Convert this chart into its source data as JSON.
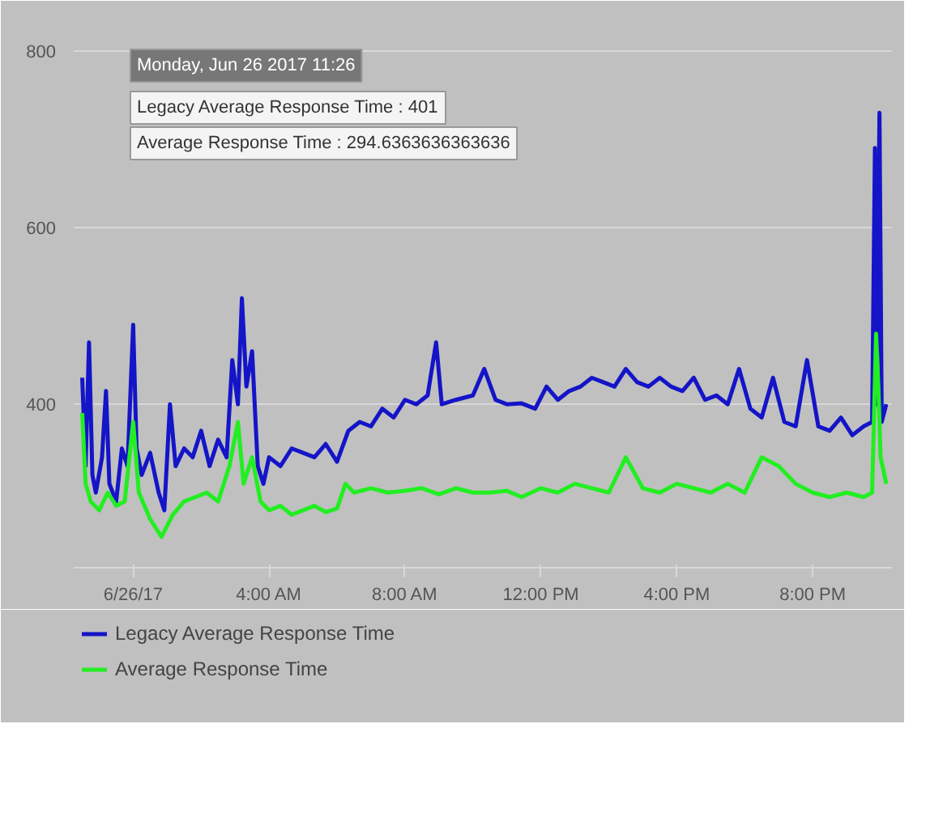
{
  "chart_data": {
    "type": "line",
    "x": [
      "2017-06-25T22:30",
      "2017-06-25T22:36",
      "2017-06-25T22:42",
      "2017-06-25T22:48",
      "2017-06-25T22:54",
      "2017-06-25T23:05",
      "2017-06-25T23:12",
      "2017-06-25T23:18",
      "2017-06-25T23:30",
      "2017-06-25T23:40",
      "2017-06-25T23:50",
      "2017-06-26T00:00",
      "2017-06-26T00:06",
      "2017-06-26T00:15",
      "2017-06-26T00:30",
      "2017-06-26T00:45",
      "2017-06-26T00:55",
      "2017-06-26T01:05",
      "2017-06-26T01:15",
      "2017-06-26T01:30",
      "2017-06-26T01:45",
      "2017-06-26T02:00",
      "2017-06-26T02:15",
      "2017-06-26T02:30",
      "2017-06-26T02:45",
      "2017-06-26T02:55",
      "2017-06-26T03:05",
      "2017-06-26T03:12",
      "2017-06-26T03:20",
      "2017-06-26T03:30",
      "2017-06-26T03:40",
      "2017-06-26T03:50",
      "2017-06-26T04:00",
      "2017-06-26T04:20",
      "2017-06-26T04:40",
      "2017-06-26T05:00",
      "2017-06-26T05:20",
      "2017-06-26T05:40",
      "2017-06-26T06:00",
      "2017-06-26T06:20",
      "2017-06-26T06:40",
      "2017-06-26T07:00",
      "2017-06-26T07:20",
      "2017-06-26T07:40",
      "2017-06-26T08:00",
      "2017-06-26T08:20",
      "2017-06-26T08:40",
      "2017-06-26T08:55",
      "2017-06-26T09:05",
      "2017-06-26T09:30",
      "2017-06-26T10:00",
      "2017-06-26T10:20",
      "2017-06-26T10:40",
      "2017-06-26T11:00",
      "2017-06-26T11:26",
      "2017-06-26T11:50",
      "2017-06-26T12:10",
      "2017-06-26T12:30",
      "2017-06-26T12:50",
      "2017-06-26T13:10",
      "2017-06-26T13:30",
      "2017-06-26T13:50",
      "2017-06-26T14:10",
      "2017-06-26T14:30",
      "2017-06-26T14:50",
      "2017-06-26T15:10",
      "2017-06-26T15:30",
      "2017-06-26T15:50",
      "2017-06-26T16:10",
      "2017-06-26T16:30",
      "2017-06-26T16:50",
      "2017-06-26T17:10",
      "2017-06-26T17:30",
      "2017-06-26T17:50",
      "2017-06-26T18:10",
      "2017-06-26T18:30",
      "2017-06-26T18:50",
      "2017-06-26T19:10",
      "2017-06-26T19:30",
      "2017-06-26T19:50",
      "2017-06-26T20:10",
      "2017-06-26T20:30",
      "2017-06-26T20:50",
      "2017-06-26T21:10",
      "2017-06-26T21:30",
      "2017-06-26T21:45",
      "2017-06-26T21:50",
      "2017-06-26T21:53",
      "2017-06-26T21:58",
      "2017-06-26T22:02",
      "2017-06-26T22:10"
    ],
    "series": [
      {
        "name": "Legacy Average Response Time",
        "color": "#1414c8",
        "values": [
          430,
          330,
          470,
          320,
          300,
          340,
          415,
          310,
          290,
          350,
          330,
          490,
          350,
          320,
          345,
          300,
          280,
          400,
          330,
          350,
          340,
          370,
          330,
          360,
          340,
          450,
          400,
          520,
          420,
          460,
          330,
          310,
          340,
          330,
          350,
          345,
          340,
          355,
          335,
          370,
          380,
          375,
          395,
          385,
          405,
          400,
          410,
          470,
          400,
          405,
          410,
          440,
          405,
          400,
          401,
          395,
          420,
          405,
          415,
          420,
          430,
          425,
          420,
          440,
          425,
          420,
          430,
          420,
          415,
          430,
          405,
          410,
          400,
          440,
          395,
          385,
          430,
          380,
          375,
          450,
          375,
          370,
          385,
          365,
          375,
          380,
          690,
          400,
          730,
          380,
          400
        ]
      },
      {
        "name": "Average Response Time",
        "color": "#22ee22",
        "x": [
          "2017-06-25T22:30",
          "2017-06-25T22:36",
          "2017-06-25T22:45",
          "2017-06-25T23:00",
          "2017-06-25T23:15",
          "2017-06-25T23:30",
          "2017-06-25T23:45",
          "2017-06-26T00:00",
          "2017-06-26T00:10",
          "2017-06-26T00:30",
          "2017-06-26T00:50",
          "2017-06-26T01:10",
          "2017-06-26T01:30",
          "2017-06-26T01:50",
          "2017-06-26T02:10",
          "2017-06-26T02:30",
          "2017-06-26T02:50",
          "2017-06-26T03:05",
          "2017-06-26T03:15",
          "2017-06-26T03:30",
          "2017-06-26T03:45",
          "2017-06-26T04:00",
          "2017-06-26T04:20",
          "2017-06-26T04:40",
          "2017-06-26T05:00",
          "2017-06-26T05:20",
          "2017-06-26T05:40",
          "2017-06-26T06:00",
          "2017-06-26T06:15",
          "2017-06-26T06:30",
          "2017-06-26T07:00",
          "2017-06-26T07:30",
          "2017-06-26T08:00",
          "2017-06-26T08:30",
          "2017-06-26T09:00",
          "2017-06-26T09:30",
          "2017-06-26T10:00",
          "2017-06-26T10:30",
          "2017-06-26T11:00",
          "2017-06-26T11:26",
          "2017-06-26T12:00",
          "2017-06-26T12:30",
          "2017-06-26T13:00",
          "2017-06-26T13:30",
          "2017-06-26T14:00",
          "2017-06-26T14:30",
          "2017-06-26T15:00",
          "2017-06-26T15:30",
          "2017-06-26T16:00",
          "2017-06-26T16:30",
          "2017-06-26T17:00",
          "2017-06-26T17:30",
          "2017-06-26T18:00",
          "2017-06-26T18:30",
          "2017-06-26T19:00",
          "2017-06-26T19:30",
          "2017-06-26T20:00",
          "2017-06-26T20:30",
          "2017-06-26T21:00",
          "2017-06-26T21:30",
          "2017-06-26T21:45",
          "2017-06-26T21:52",
          "2017-06-26T21:56",
          "2017-06-26T22:00",
          "2017-06-26T22:10"
        ],
        "values": [
          390,
          310,
          290,
          280,
          300,
          285,
          290,
          380,
          300,
          270,
          250,
          275,
          290,
          295,
          300,
          290,
          330,
          380,
          310,
          340,
          290,
          280,
          285,
          275,
          280,
          285,
          278,
          282,
          310,
          300,
          305,
          300,
          302,
          305,
          298,
          305,
          300,
          300,
          302,
          295,
          305,
          300,
          310,
          305,
          300,
          340,
          305,
          300,
          310,
          305,
          300,
          310,
          300,
          340,
          330,
          310,
          300,
          295,
          300,
          295,
          300,
          480,
          420,
          340,
          310
        ]
      }
    ],
    "xlim": [
      "2017-06-25T22:15",
      "2017-06-26T22:20"
    ],
    "xticks": [
      {
        "value": "2017-06-26T00:00",
        "label": "6/26/17"
      },
      {
        "value": "2017-06-26T04:00",
        "label": "4:00 AM"
      },
      {
        "value": "2017-06-26T08:00",
        "label": "8:00 AM"
      },
      {
        "value": "2017-06-26T12:00",
        "label": "12:00 PM"
      },
      {
        "value": "2017-06-26T16:00",
        "label": "4:00 PM"
      },
      {
        "value": "2017-06-26T20:00",
        "label": "8:00 PM"
      }
    ],
    "ylim": [
      215,
      820
    ],
    "yticks": [
      400,
      600,
      800
    ],
    "grid": "y",
    "legend": "bottom left",
    "annotations": [
      "Monday, Jun 26 2017 11:26",
      "Legacy Average Response Time : 401",
      "Average Response Time : 294.6363636363636"
    ]
  }
}
